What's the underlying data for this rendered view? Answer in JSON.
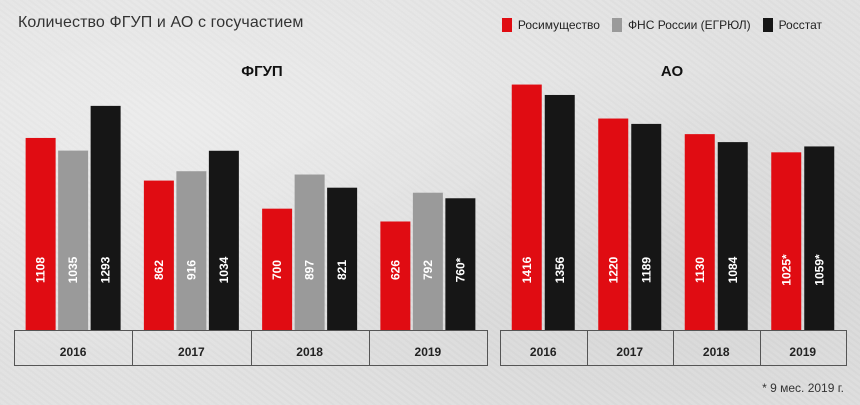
{
  "title": "Количество ФГУП и АО с госучастием",
  "legend": [
    {
      "label": "Росимущество",
      "color": "#e00c12"
    },
    {
      "label": "ФНС России (ЕГРЮЛ)",
      "color": "#9a9a9a"
    },
    {
      "label": "Росстат",
      "color": "#161616"
    }
  ],
  "footnote": "* 9 мес. 2019 г.",
  "chart_data": [
    {
      "type": "bar",
      "title": "ФГУП",
      "categories": [
        "2016",
        "2017",
        "2018",
        "2019"
      ],
      "series": [
        {
          "name": "Росимущество",
          "color": "#e00c12",
          "values": [
            1108,
            862,
            700,
            626
          ],
          "labels": [
            "1108",
            "862",
            "700",
            "626"
          ]
        },
        {
          "name": "ФНС России (ЕГРЮЛ)",
          "color": "#9a9a9a",
          "values": [
            1035,
            916,
            897,
            792
          ],
          "labels": [
            "1035",
            "916",
            "897",
            "792"
          ]
        },
        {
          "name": "Росстат",
          "color": "#161616",
          "values": [
            1293,
            1034,
            821,
            760
          ],
          "labels": [
            "1293",
            "1034",
            "821",
            "760*"
          ]
        }
      ],
      "ylim": [
        0,
        1500
      ],
      "grid": false
    },
    {
      "type": "bar",
      "title": "АО",
      "categories": [
        "2016",
        "2017",
        "2018",
        "2019"
      ],
      "series": [
        {
          "name": "Росимущество",
          "color": "#e00c12",
          "values": [
            1416,
            1220,
            1130,
            1025
          ],
          "labels": [
            "1416",
            "1220",
            "1130",
            "1025*"
          ]
        },
        {
          "name": "Росстат",
          "color": "#161616",
          "values": [
            1356,
            1189,
            1084,
            1059
          ],
          "labels": [
            "1356",
            "1189",
            "1084",
            "1059*"
          ]
        }
      ],
      "ylim": [
        0,
        1500
      ],
      "grid": false
    }
  ]
}
